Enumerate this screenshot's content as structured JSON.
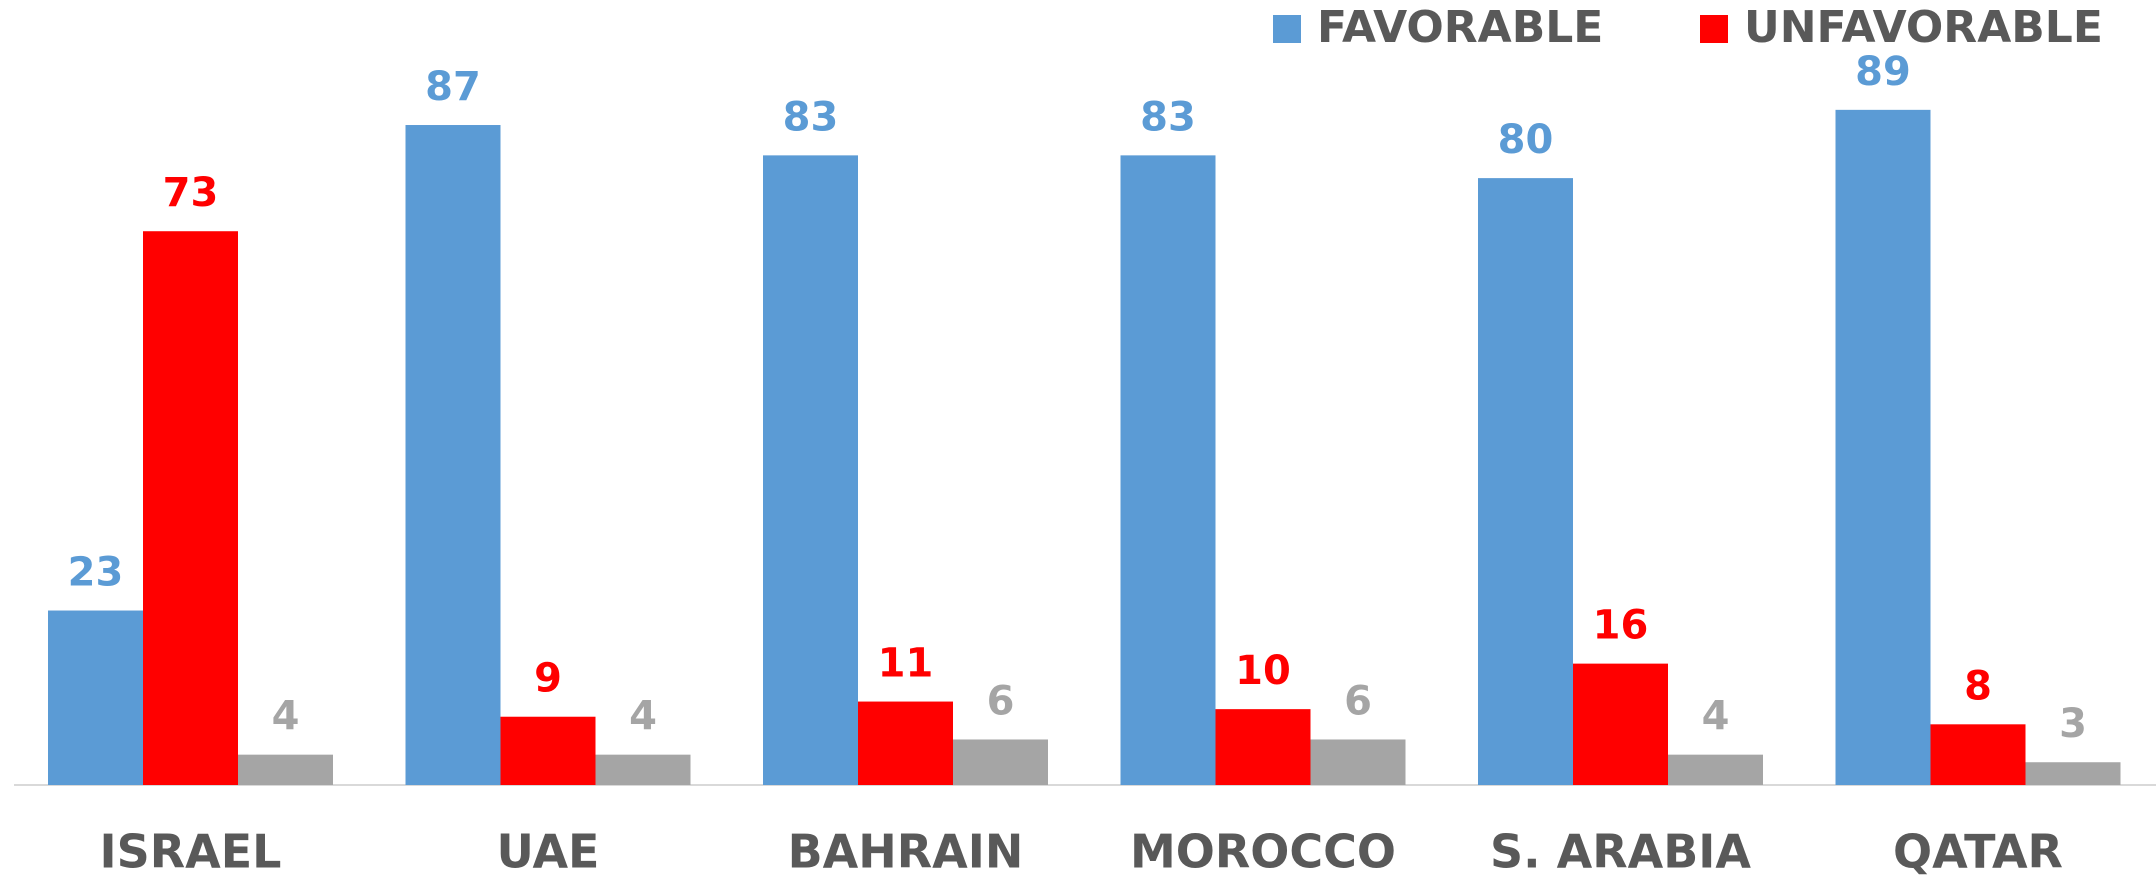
{
  "chart_data": {
    "type": "bar",
    "categories": [
      "ISRAEL",
      "UAE",
      "BAHRAIN",
      "MOROCCO",
      "S. ARABIA",
      "QATAR"
    ],
    "series": [
      {
        "name": "FAVORABLE",
        "color": "#5b9bd5",
        "values": [
          23,
          87,
          83,
          83,
          80,
          89
        ]
      },
      {
        "name": "UNFAVORABLE",
        "color": "#ff0000",
        "values": [
          73,
          9,
          11,
          10,
          16,
          8
        ]
      },
      {
        "color": "#a5a5a5",
        "values": [
          4,
          4,
          6,
          6,
          4,
          3
        ]
      }
    ],
    "grid": false
  }
}
